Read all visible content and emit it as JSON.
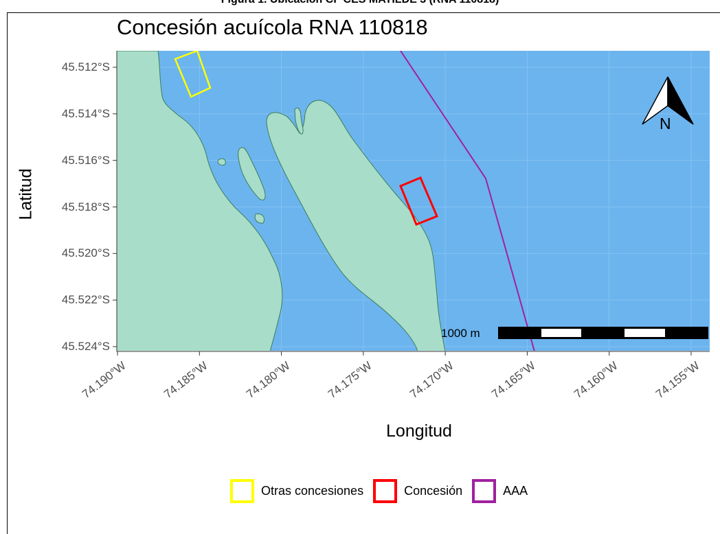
{
  "figure": {
    "caption": "Figura 1. Ubicación CF CES MATILDE 3 (RNA 110818)"
  },
  "map": {
    "title": "Concesión acuícola RNA 110818",
    "x_axis_title": "Longitud",
    "y_axis_title": "Latitud",
    "x_ticks": [
      {
        "value": -74.19,
        "label": "74.190°W"
      },
      {
        "value": -74.185,
        "label": "74.185°W"
      },
      {
        "value": -74.18,
        "label": "74.180°W"
      },
      {
        "value": -74.175,
        "label": "74.175°W"
      },
      {
        "value": -74.17,
        "label": "74.170°W"
      },
      {
        "value": -74.165,
        "label": "74.165°W"
      },
      {
        "value": -74.16,
        "label": "74.160°W"
      },
      {
        "value": -74.155,
        "label": "74.155°W"
      }
    ],
    "y_ticks": [
      {
        "value": -45.512,
        "label": "45.512°S"
      },
      {
        "value": -45.514,
        "label": "45.514°S"
      },
      {
        "value": -45.516,
        "label": "45.516°S"
      },
      {
        "value": -45.518,
        "label": "45.518°S"
      },
      {
        "value": -45.52,
        "label": "45.520°S"
      },
      {
        "value": -45.522,
        "label": "45.522°S"
      },
      {
        "value": -45.524,
        "label": "45.524°S"
      }
    ],
    "scale_bar": {
      "label": "1000 m",
      "segments": 5
    },
    "north_arrow": {
      "label": "N"
    },
    "colors": {
      "water": "#6cb4ee",
      "land": "#a8ddc9",
      "land_outline": "#3a7d5c",
      "otras_concesiones": "#ffff00",
      "concesion": "#ff0000",
      "aaa": "#a020a0",
      "grid": "#85c2f2"
    }
  },
  "legend": {
    "items": [
      {
        "label": "Otras concesiones",
        "color": "#ffff00"
      },
      {
        "label": "Concesión",
        "color": "#ff0000"
      },
      {
        "label": "AAA",
        "color": "#a020a0"
      }
    ]
  }
}
